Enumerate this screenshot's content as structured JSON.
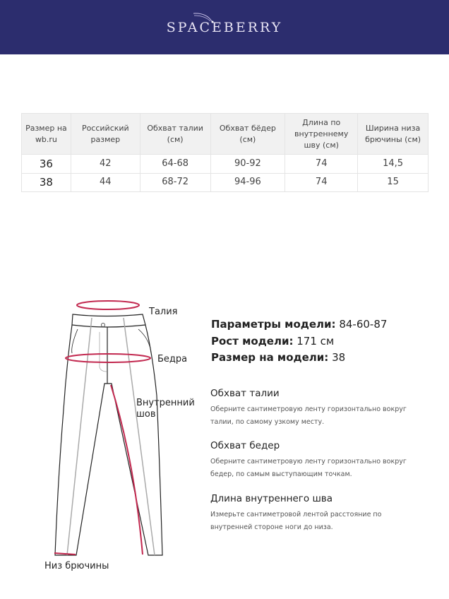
{
  "header": {
    "brand": "SPACEBERRY",
    "background": "#2c2d6e"
  },
  "table": {
    "headers": [
      "Размер на wb.ru",
      "Российский размер",
      "Обхват талии (см)",
      "Обхват бёдер (см)",
      "Длина по внутреннему шву (см)",
      "Ширина низа брючины (см)"
    ],
    "rows": [
      [
        "36",
        "42",
        "64-68",
        "90-92",
        "74",
        "14,5"
      ],
      [
        "38",
        "44",
        "68-72",
        "94-96",
        "74",
        "15"
      ]
    ]
  },
  "diagram": {
    "labels": {
      "waist": "Талия",
      "hips": "Бедра",
      "inseam_1": "Внутренний",
      "inseam_2": "шов",
      "hem": "Низ брючины"
    },
    "accent": "#c2284f"
  },
  "model": {
    "params_label": "Параметры модели:",
    "params_value": "84-60-87",
    "height_label": "Рост модели:",
    "height_value": "171 см",
    "size_label": "Размер на модели:",
    "size_value": "38"
  },
  "sections": [
    {
      "title": "Обхват талии",
      "text": "Оберните сантиметровую ленту горизонтально вокруг талии, по самому узкому месту."
    },
    {
      "title": "Обхват бедер",
      "text": "Оберните сантиметровую ленту горизонтально вокруг бедер, по самым выступающим точкам."
    },
    {
      "title": "Длина внутреннего шва",
      "text": "Измерьте сантиметровой лентой расстояние по внутренней стороне ноги до низа."
    }
  ]
}
